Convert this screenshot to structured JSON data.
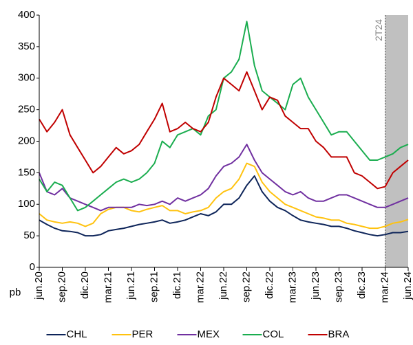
{
  "chart_data": {
    "type": "line",
    "categories": [
      "jun.20",
      null,
      null,
      "sep.20",
      null,
      null,
      "dic.20",
      null,
      null,
      "mar.21",
      null,
      null,
      "jun.21",
      null,
      null,
      "sep.21",
      null,
      null,
      "dic.21",
      null,
      null,
      "mar.22",
      null,
      null,
      "jun.22",
      null,
      null,
      "sep.22",
      null,
      null,
      "dic.22",
      null,
      null,
      "mar.23",
      null,
      null,
      "jun.23",
      null,
      null,
      "sep.23",
      null,
      null,
      "dic.23",
      null,
      null,
      "mar.24",
      null,
      null,
      "jun.24"
    ],
    "series": [
      {
        "name": "CHL",
        "color": "#0d2459",
        "values": [
          75,
          68,
          62,
          58,
          57,
          55,
          50,
          50,
          52,
          58,
          60,
          62,
          65,
          68,
          70,
          72,
          75,
          70,
          72,
          75,
          80,
          85,
          82,
          88,
          100,
          100,
          110,
          130,
          145,
          120,
          105,
          95,
          90,
          82,
          75,
          72,
          70,
          68,
          65,
          65,
          62,
          58,
          55,
          52,
          50,
          52,
          55,
          55,
          57
        ]
      },
      {
        "name": "PER",
        "color": "#ffc20e",
        "values": [
          85,
          75,
          72,
          70,
          72,
          70,
          65,
          70,
          85,
          92,
          95,
          95,
          90,
          88,
          92,
          95,
          98,
          90,
          90,
          85,
          88,
          90,
          95,
          110,
          120,
          125,
          140,
          165,
          160,
          135,
          120,
          110,
          100,
          95,
          90,
          85,
          80,
          78,
          75,
          75,
          70,
          68,
          65,
          62,
          62,
          65,
          70,
          72,
          76
        ]
      },
      {
        "name": "MEX",
        "color": "#7030a0",
        "values": [
          150,
          120,
          115,
          125,
          110,
          105,
          100,
          95,
          90,
          95,
          95,
          95,
          95,
          100,
          98,
          100,
          105,
          100,
          110,
          105,
          110,
          115,
          125,
          145,
          160,
          165,
          175,
          195,
          170,
          150,
          140,
          130,
          120,
          115,
          120,
          110,
          105,
          105,
          110,
          115,
          115,
          110,
          105,
          100,
          95,
          95,
          100,
          105,
          110
        ]
      },
      {
        "name": "COL",
        "color": "#1aad4f",
        "values": [
          140,
          120,
          135,
          130,
          110,
          90,
          95,
          105,
          115,
          125,
          135,
          140,
          135,
          140,
          150,
          165,
          200,
          190,
          210,
          215,
          220,
          210,
          240,
          250,
          300,
          310,
          330,
          390,
          320,
          280,
          270,
          260,
          250,
          290,
          300,
          270,
          250,
          230,
          210,
          215,
          215,
          200,
          185,
          170,
          170,
          175,
          180,
          190,
          195
        ]
      },
      {
        "name": "BRA",
        "color": "#c00000",
        "values": [
          235,
          215,
          230,
          250,
          210,
          190,
          170,
          150,
          160,
          175,
          190,
          180,
          185,
          195,
          215,
          235,
          260,
          215,
          220,
          230,
          220,
          215,
          230,
          270,
          300,
          290,
          280,
          310,
          280,
          250,
          270,
          265,
          240,
          230,
          220,
          220,
          200,
          190,
          175,
          175,
          175,
          150,
          145,
          135,
          125,
          128,
          150,
          160,
          170
        ]
      }
    ],
    "ylabel": "pb",
    "ylim": [
      0,
      400
    ],
    "yticks": [
      0,
      50,
      100,
      150,
      200,
      250,
      300,
      350,
      400
    ],
    "shade": {
      "from": "mar.24",
      "to": "jun.24",
      "label": "2T24",
      "color": "#c0c0c0"
    },
    "legend": "bottom"
  }
}
